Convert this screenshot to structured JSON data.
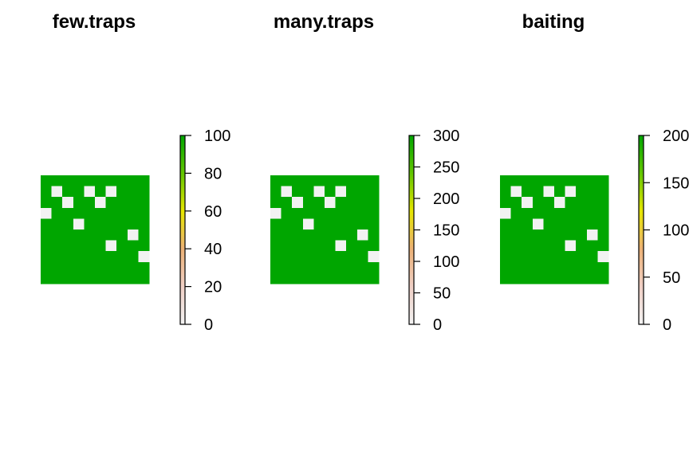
{
  "chart_data": [
    {
      "type": "heatmap",
      "title": "few.traps",
      "grid_size": [
        10,
        10
      ],
      "cell_values": [
        [
          100,
          100,
          100,
          100,
          100,
          100,
          100,
          100,
          100,
          100
        ],
        [
          100,
          0,
          100,
          100,
          0,
          100,
          0,
          100,
          100,
          100
        ],
        [
          100,
          100,
          0,
          100,
          100,
          0,
          100,
          100,
          100,
          100
        ],
        [
          0,
          100,
          100,
          100,
          100,
          100,
          100,
          100,
          100,
          100
        ],
        [
          100,
          100,
          100,
          0,
          100,
          100,
          100,
          100,
          100,
          100
        ],
        [
          100,
          100,
          100,
          100,
          100,
          100,
          100,
          100,
          0,
          100
        ],
        [
          100,
          100,
          100,
          100,
          100,
          100,
          0,
          100,
          100,
          100
        ],
        [
          100,
          100,
          100,
          100,
          100,
          100,
          100,
          100,
          100,
          0
        ],
        [
          100,
          100,
          100,
          100,
          100,
          100,
          100,
          100,
          100,
          100
        ],
        [
          100,
          100,
          100,
          100,
          100,
          100,
          100,
          100,
          100,
          100
        ]
      ],
      "color_scale": {
        "min": 0,
        "max": 100,
        "ticks": [
          0,
          20,
          40,
          60,
          80,
          100
        ]
      }
    },
    {
      "type": "heatmap",
      "title": "many.traps",
      "grid_size": [
        10,
        10
      ],
      "cell_values": [
        [
          300,
          300,
          300,
          300,
          300,
          300,
          300,
          300,
          300,
          300
        ],
        [
          300,
          0,
          300,
          300,
          0,
          300,
          0,
          300,
          300,
          300
        ],
        [
          300,
          300,
          0,
          300,
          300,
          0,
          300,
          300,
          300,
          300
        ],
        [
          0,
          300,
          300,
          300,
          300,
          300,
          300,
          300,
          300,
          300
        ],
        [
          300,
          300,
          300,
          0,
          300,
          300,
          300,
          300,
          300,
          300
        ],
        [
          300,
          300,
          300,
          300,
          300,
          300,
          300,
          300,
          0,
          300
        ],
        [
          300,
          300,
          300,
          300,
          300,
          300,
          0,
          300,
          300,
          300
        ],
        [
          300,
          300,
          300,
          300,
          300,
          300,
          300,
          300,
          300,
          0
        ],
        [
          300,
          300,
          300,
          300,
          300,
          300,
          300,
          300,
          300,
          300
        ],
        [
          300,
          300,
          300,
          300,
          300,
          300,
          300,
          300,
          300,
          300
        ]
      ],
      "color_scale": {
        "min": 0,
        "max": 300,
        "ticks": [
          0,
          50,
          100,
          150,
          200,
          250,
          300
        ]
      }
    },
    {
      "type": "heatmap",
      "title": "baiting",
      "grid_size": [
        10,
        10
      ],
      "cell_values": [
        [
          200,
          200,
          200,
          200,
          200,
          200,
          200,
          200,
          200,
          200
        ],
        [
          200,
          0,
          200,
          200,
          0,
          200,
          0,
          200,
          200,
          200
        ],
        [
          200,
          200,
          0,
          200,
          200,
          0,
          200,
          200,
          200,
          200
        ],
        [
          0,
          200,
          200,
          200,
          200,
          200,
          200,
          200,
          200,
          200
        ],
        [
          200,
          200,
          200,
          0,
          200,
          200,
          200,
          200,
          200,
          200
        ],
        [
          200,
          200,
          200,
          200,
          200,
          200,
          200,
          200,
          0,
          200
        ],
        [
          200,
          200,
          200,
          200,
          200,
          200,
          0,
          200,
          200,
          200
        ],
        [
          200,
          200,
          200,
          200,
          200,
          200,
          200,
          200,
          200,
          0
        ],
        [
          200,
          200,
          200,
          200,
          200,
          200,
          200,
          200,
          200,
          200
        ],
        [
          200,
          200,
          200,
          200,
          200,
          200,
          200,
          200,
          200,
          200
        ]
      ],
      "color_scale": {
        "min": 0,
        "max": 200,
        "ticks": [
          0,
          50,
          100,
          150,
          200
        ]
      }
    }
  ],
  "colors": {
    "full": "#00A600",
    "zero": "#F2F2F2",
    "palette": [
      "#F2F2F2",
      "#EFCFC5",
      "#ECB176",
      "#E6E600",
      "#63C600",
      "#00A600"
    ]
  }
}
